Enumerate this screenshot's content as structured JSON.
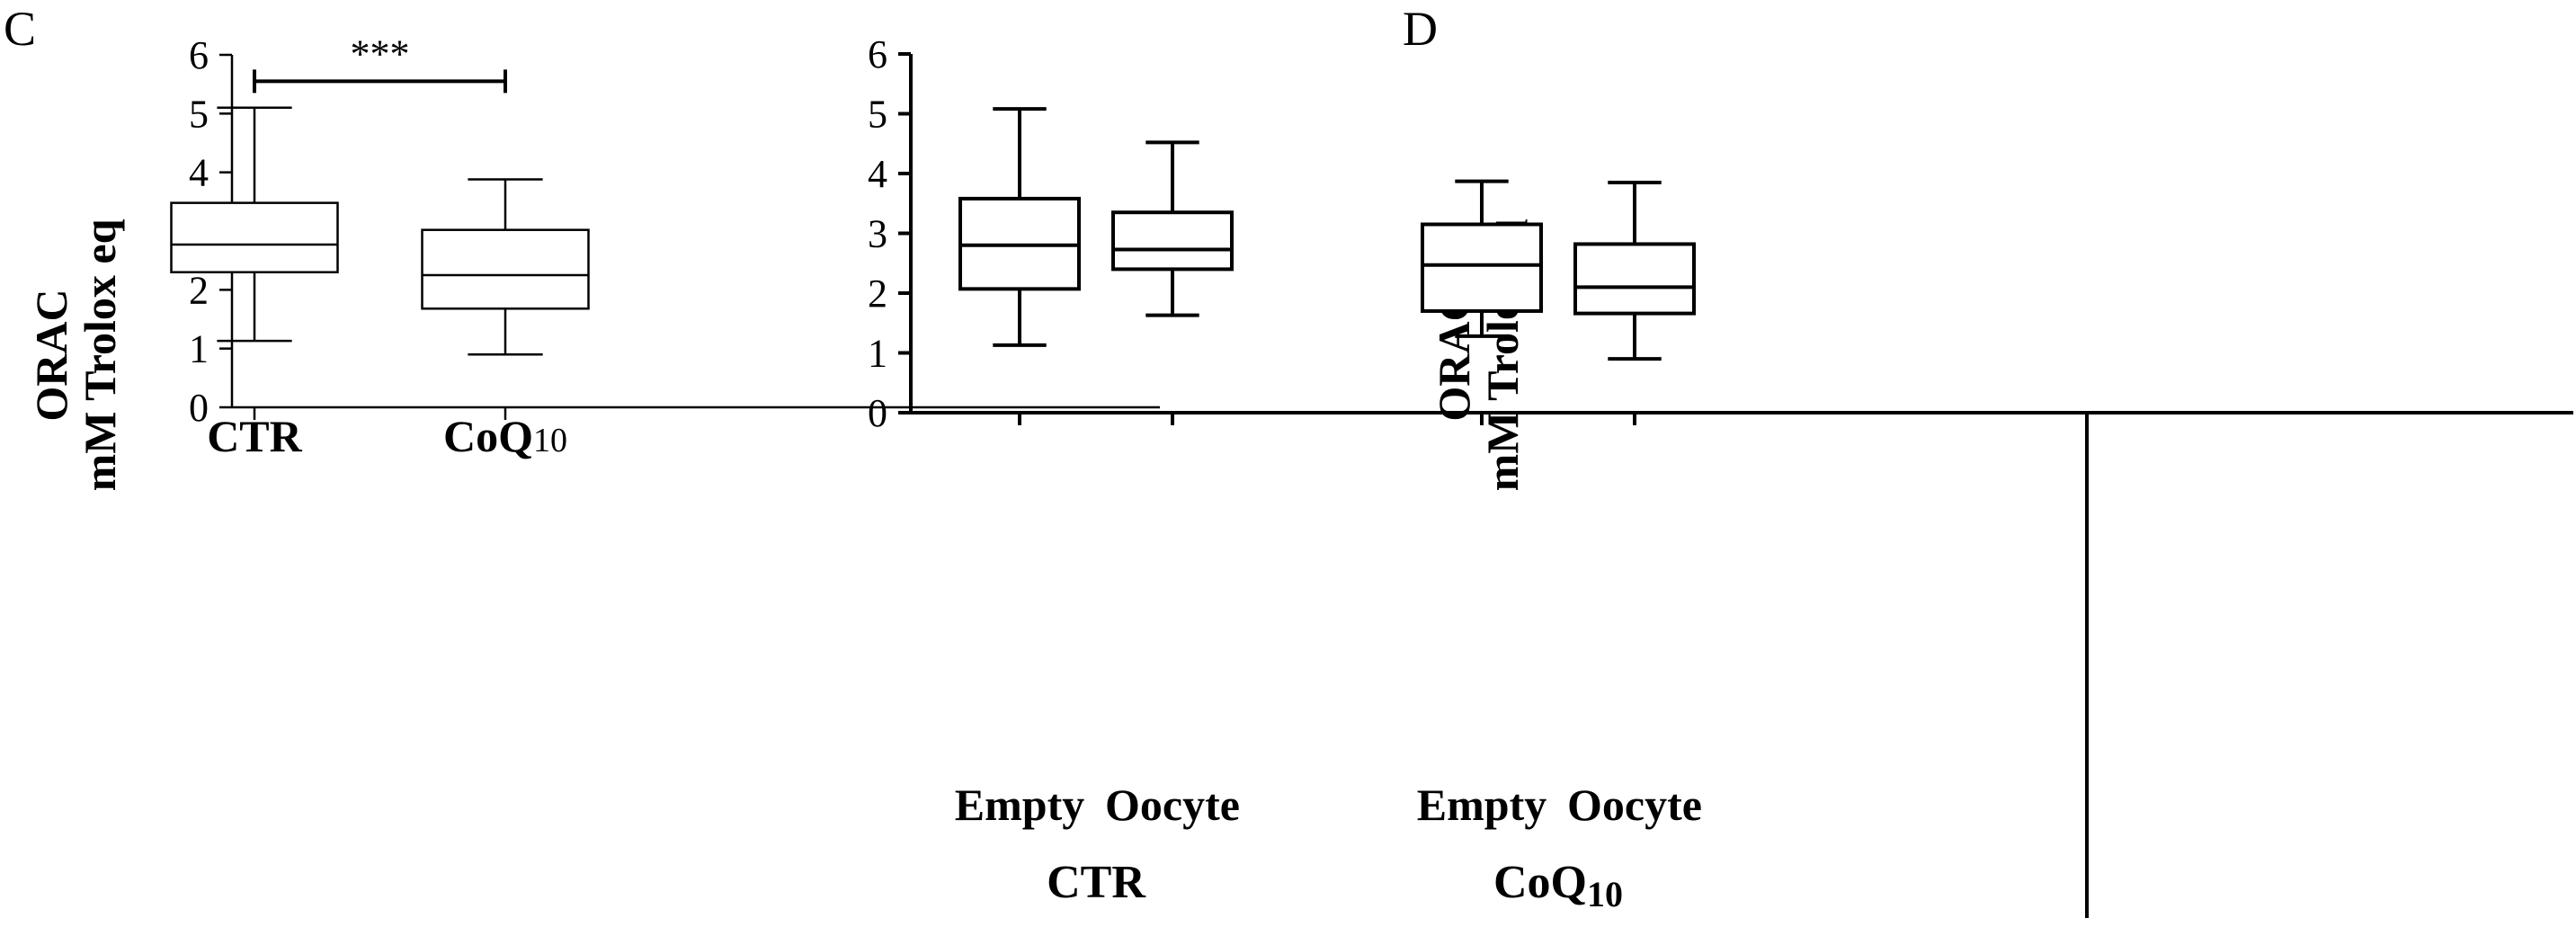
{
  "panels": [
    {
      "letter": "C",
      "ylabel_line1": "ORAC",
      "ylabel_line2": "mM Trolox eq",
      "significance": "***"
    },
    {
      "letter": "D",
      "ylabel_line1": "ORAC",
      "ylabel_line2": "mM Trolox eq",
      "groups": [
        {
          "label": "CTR"
        },
        {
          "label": "CoQ",
          "sub": "10"
        }
      ]
    }
  ],
  "chart_data": [
    {
      "type": "box",
      "title": "",
      "ylabel": "ORAC mM Trolox eq",
      "ylim": [
        0,
        6
      ],
      "yticks": [
        0,
        1,
        2,
        3,
        4,
        5,
        6
      ],
      "categories": [
        {
          "label": "CTR",
          "sub": ""
        },
        {
          "label": "CoQ",
          "sub": "10"
        }
      ],
      "boxes": [
        {
          "min": 1.13,
          "q1": 2.3,
          "median": 2.77,
          "q3": 3.48,
          "max": 5.1
        },
        {
          "min": 0.9,
          "q1": 1.68,
          "median": 2.25,
          "q3": 3.02,
          "max": 3.88
        }
      ],
      "significance": {
        "between": [
          0,
          1
        ],
        "label": "***",
        "y": 5.55
      }
    },
    {
      "type": "box",
      "title": "",
      "ylabel": "ORAC mM Trolox eq",
      "ylim": [
        0,
        6
      ],
      "yticks": [
        0,
        1,
        2,
        3,
        4,
        5,
        6
      ],
      "categories": [
        {
          "label": "Empty",
          "group": "CTR"
        },
        {
          "label": "Oocyte",
          "group": "CTR"
        },
        {
          "label": "Empty",
          "group": "CoQ10"
        },
        {
          "label": "Oocyte",
          "group": "CoQ10"
        }
      ],
      "boxes": [
        {
          "min": 1.13,
          "q1": 2.07,
          "median": 2.8,
          "q3": 3.58,
          "max": 5.08
        },
        {
          "min": 1.63,
          "q1": 2.4,
          "median": 2.73,
          "q3": 3.35,
          "max": 4.52
        },
        {
          "min": 1.28,
          "q1": 1.7,
          "median": 2.47,
          "q3": 3.15,
          "max": 3.87
        },
        {
          "min": 0.9,
          "q1": 1.66,
          "median": 2.1,
          "q3": 2.82,
          "max": 3.85
        }
      ]
    }
  ]
}
